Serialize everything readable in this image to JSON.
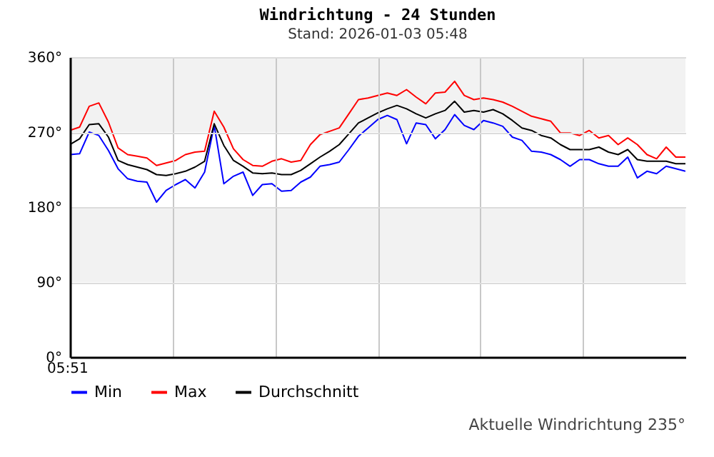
{
  "chart_data": {
    "type": "line",
    "title": "Windrichtung - 24 Stunden",
    "subtitle": "Stand: 2026-01-03 05:48",
    "annotations": [
      "05:51",
      "Aktuelle Windrichtung 235°"
    ],
    "categories": [
      null,
      null,
      null,
      null,
      null,
      null,
      null,
      null,
      null,
      null,
      null,
      null,
      null,
      null,
      null,
      null,
      null,
      null,
      null,
      null,
      null,
      null,
      null,
      null,
      null,
      null,
      null,
      null,
      null,
      null,
      null,
      null,
      null,
      null,
      null,
      null,
      null,
      null,
      null,
      null,
      null,
      null,
      null,
      null,
      null,
      null,
      null,
      null,
      null,
      null,
      null,
      null,
      null,
      null,
      null,
      null,
      null,
      null,
      null,
      null,
      null,
      null,
      null,
      null,
      null
    ],
    "ylim": [
      0,
      360
    ],
    "yticks": [
      {
        "value": 0,
        "label": "0°"
      },
      {
        "value": 90,
        "label": "90°"
      },
      {
        "value": 180,
        "label": "180°"
      },
      {
        "value": 270,
        "label": "270°"
      },
      {
        "value": 360,
        "label": "360°"
      }
    ],
    "grid": true,
    "legend": "bottom",
    "bands": [
      {
        "axis": "y",
        "from": 90,
        "to": 180,
        "color": "#f2f2f2"
      },
      {
        "axis": "y",
        "from": 270,
        "to": 360,
        "color": "#f2f2f2"
      }
    ],
    "series": [
      {
        "name": "Min",
        "color": "#0000ff",
        "values": [
          243,
          244,
          270,
          266,
          248,
          226,
          214,
          211,
          210,
          186,
          200,
          207,
          213,
          203,
          222,
          278,
          208,
          217,
          222,
          194,
          207,
          208,
          199,
          200,
          210,
          216,
          229,
          231,
          234,
          249,
          265,
          275,
          285,
          290,
          285,
          256,
          281,
          279,
          262,
          273,
          291,
          278,
          273,
          284,
          281,
          277,
          264,
          260,
          247,
          246,
          243,
          237,
          229,
          237,
          237,
          232,
          229,
          229,
          240,
          215,
          223,
          220,
          229,
          226,
          223
        ]
      },
      {
        "name": "Max",
        "color": "#ff0000",
        "values": [
          272,
          276,
          301,
          305,
          282,
          251,
          243,
          241,
          239,
          230,
          233,
          236,
          243,
          246,
          247,
          295,
          276,
          250,
          237,
          230,
          229,
          235,
          238,
          234,
          236,
          255,
          267,
          271,
          275,
          292,
          309,
          311,
          314,
          317,
          314,
          321,
          312,
          304,
          317,
          318,
          331,
          314,
          309,
          311,
          309,
          306,
          301,
          295,
          289,
          286,
          283,
          269,
          269,
          266,
          272,
          263,
          266,
          255,
          263,
          255,
          243,
          238,
          252,
          240,
          240
        ]
      },
      {
        "name": "Durchschnitt",
        "color": "#000000",
        "values": [
          255,
          262,
          279,
          280,
          264,
          236,
          231,
          228,
          225,
          219,
          218,
          220,
          223,
          228,
          235,
          280,
          254,
          236,
          229,
          221,
          220,
          221,
          219,
          219,
          224,
          232,
          240,
          247,
          255,
          268,
          281,
          287,
          293,
          298,
          302,
          298,
          292,
          287,
          292,
          296,
          307,
          294,
          296,
          294,
          297,
          292,
          284,
          275,
          272,
          266,
          263,
          255,
          249,
          249,
          249,
          252,
          246,
          243,
          249,
          237,
          235,
          235,
          235,
          232,
          232
        ]
      }
    ]
  }
}
